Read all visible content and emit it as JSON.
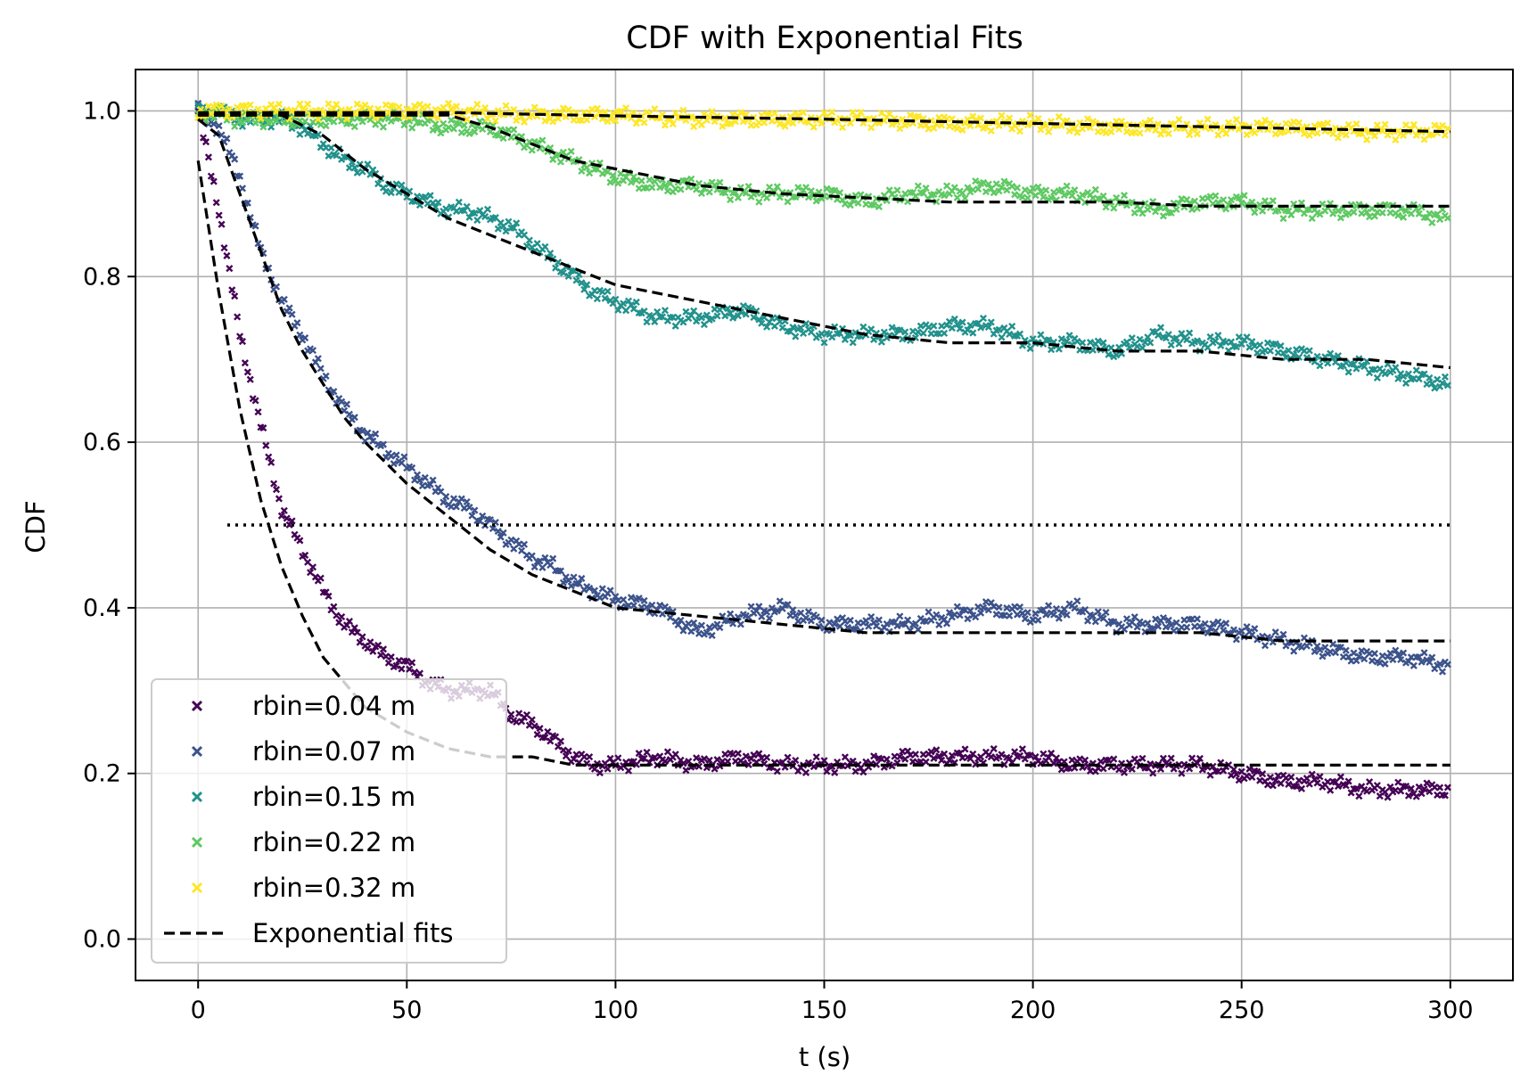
{
  "chart_data": {
    "type": "line",
    "title": "CDF with Exponential Fits",
    "xlabel": "t (s)",
    "ylabel": "CDF",
    "xlim": [
      -15,
      315
    ],
    "ylim": [
      -0.05,
      1.05
    ],
    "xticks": [
      0,
      50,
      100,
      150,
      200,
      250,
      300
    ],
    "yticks": [
      0.0,
      0.2,
      0.4,
      0.6,
      0.8,
      1.0
    ],
    "xtick_labels": [
      "0",
      "50",
      "100",
      "150",
      "200",
      "250",
      "300"
    ],
    "ytick_labels": [
      "0.0",
      "0.2",
      "0.4",
      "0.6",
      "0.8",
      "1.0"
    ],
    "grid": true,
    "legend_position": "lower-left",
    "reference_line": {
      "y": 0.5,
      "x_range": [
        7,
        300
      ],
      "style": "dotted",
      "color": "#000000"
    },
    "series": [
      {
        "name": "rbin=0.04 m",
        "color": "#440154",
        "marker": "x",
        "x": [
          0,
          5,
          10,
          15,
          20,
          25,
          30,
          35,
          40,
          45,
          50,
          55,
          60,
          65,
          70,
          75,
          80,
          85,
          90,
          95,
          100,
          110,
          120,
          130,
          140,
          150,
          160,
          170,
          180,
          190,
          200,
          210,
          220,
          230,
          240,
          250,
          260,
          270,
          280,
          290,
          300
        ],
        "y": [
          1.0,
          0.88,
          0.73,
          0.62,
          0.52,
          0.47,
          0.42,
          0.38,
          0.36,
          0.34,
          0.33,
          0.31,
          0.3,
          0.3,
          0.3,
          0.27,
          0.26,
          0.24,
          0.22,
          0.21,
          0.21,
          0.22,
          0.21,
          0.22,
          0.21,
          0.21,
          0.21,
          0.22,
          0.22,
          0.22,
          0.22,
          0.21,
          0.21,
          0.21,
          0.21,
          0.2,
          0.19,
          0.19,
          0.18,
          0.18,
          0.18
        ]
      },
      {
        "name": "rbin=0.07 m",
        "color": "#3b528b",
        "marker": "x",
        "x": [
          0,
          5,
          10,
          15,
          20,
          25,
          30,
          35,
          40,
          45,
          50,
          55,
          60,
          65,
          70,
          75,
          80,
          85,
          90,
          95,
          100,
          110,
          120,
          130,
          140,
          150,
          160,
          170,
          180,
          190,
          200,
          210,
          220,
          230,
          240,
          250,
          260,
          270,
          280,
          290,
          300
        ],
        "y": [
          1.0,
          0.98,
          0.92,
          0.83,
          0.77,
          0.73,
          0.68,
          0.64,
          0.61,
          0.59,
          0.57,
          0.55,
          0.53,
          0.52,
          0.5,
          0.48,
          0.46,
          0.45,
          0.43,
          0.42,
          0.41,
          0.4,
          0.37,
          0.39,
          0.4,
          0.38,
          0.38,
          0.38,
          0.39,
          0.4,
          0.39,
          0.4,
          0.38,
          0.38,
          0.38,
          0.37,
          0.36,
          0.35,
          0.34,
          0.34,
          0.33
        ]
      },
      {
        "name": "rbin=0.15 m",
        "color": "#21918c",
        "marker": "x",
        "x": [
          0,
          5,
          10,
          15,
          20,
          25,
          30,
          35,
          40,
          45,
          50,
          55,
          60,
          65,
          70,
          75,
          80,
          85,
          90,
          95,
          100,
          110,
          120,
          130,
          140,
          150,
          160,
          170,
          180,
          190,
          200,
          210,
          220,
          230,
          240,
          250,
          260,
          270,
          280,
          290,
          300
        ],
        "y": [
          1.0,
          1.0,
          0.99,
          0.99,
          0.99,
          0.98,
          0.96,
          0.94,
          0.93,
          0.91,
          0.9,
          0.89,
          0.88,
          0.88,
          0.87,
          0.86,
          0.84,
          0.82,
          0.8,
          0.78,
          0.77,
          0.75,
          0.75,
          0.76,
          0.74,
          0.73,
          0.73,
          0.73,
          0.74,
          0.74,
          0.72,
          0.72,
          0.71,
          0.73,
          0.72,
          0.72,
          0.71,
          0.7,
          0.69,
          0.68,
          0.67
        ]
      },
      {
        "name": "rbin=0.22 m",
        "color": "#5ec962",
        "marker": "x",
        "x": [
          0,
          10,
          20,
          30,
          40,
          50,
          60,
          70,
          80,
          90,
          100,
          110,
          120,
          130,
          140,
          150,
          160,
          170,
          180,
          190,
          200,
          210,
          220,
          230,
          240,
          250,
          260,
          270,
          280,
          290,
          300
        ],
        "y": [
          1.0,
          0.99,
          0.99,
          0.99,
          0.99,
          0.99,
          0.98,
          0.98,
          0.96,
          0.94,
          0.92,
          0.91,
          0.91,
          0.9,
          0.9,
          0.9,
          0.89,
          0.9,
          0.9,
          0.91,
          0.9,
          0.9,
          0.89,
          0.88,
          0.89,
          0.89,
          0.88,
          0.88,
          0.88,
          0.88,
          0.87
        ]
      },
      {
        "name": "rbin=0.32 m",
        "color": "#fde725",
        "marker": "x",
        "x": [
          0,
          20,
          40,
          60,
          80,
          100,
          120,
          140,
          160,
          180,
          200,
          220,
          240,
          260,
          280,
          300
        ],
        "y": [
          1.0,
          1.0,
          1.0,
          1.0,
          0.995,
          0.995,
          0.99,
          0.99,
          0.99,
          0.985,
          0.985,
          0.98,
          0.98,
          0.98,
          0.975,
          0.975
        ]
      }
    ],
    "fits": {
      "name": "Exponential fits",
      "color": "#000000",
      "style": "dashed",
      "curves": [
        {
          "x": [
            0,
            5,
            10,
            15,
            20,
            25,
            30,
            35,
            40,
            50,
            60,
            70,
            80,
            90,
            100,
            120,
            140,
            160,
            180,
            200,
            220,
            240,
            260,
            280,
            300
          ],
          "y": [
            0.94,
            0.78,
            0.64,
            0.53,
            0.45,
            0.39,
            0.34,
            0.31,
            0.28,
            0.25,
            0.23,
            0.22,
            0.22,
            0.21,
            0.21,
            0.21,
            0.21,
            0.21,
            0.21,
            0.21,
            0.21,
            0.21,
            0.21,
            0.21,
            0.21
          ]
        },
        {
          "x": [
            0,
            5,
            10,
            15,
            20,
            25,
            30,
            35,
            40,
            50,
            60,
            70,
            80,
            90,
            100,
            120,
            140,
            160,
            180,
            200,
            220,
            240,
            260,
            280,
            300
          ],
          "y": [
            0.99,
            0.97,
            0.9,
            0.83,
            0.76,
            0.71,
            0.67,
            0.63,
            0.6,
            0.55,
            0.51,
            0.47,
            0.44,
            0.42,
            0.4,
            0.39,
            0.38,
            0.37,
            0.37,
            0.37,
            0.37,
            0.37,
            0.36,
            0.36,
            0.36
          ]
        },
        {
          "x": [
            0,
            20,
            30,
            40,
            50,
            60,
            70,
            80,
            90,
            100,
            120,
            140,
            160,
            180,
            200,
            220,
            240,
            260,
            280,
            300
          ],
          "y": [
            0.995,
            0.995,
            0.97,
            0.93,
            0.9,
            0.87,
            0.85,
            0.83,
            0.81,
            0.79,
            0.77,
            0.75,
            0.73,
            0.72,
            0.72,
            0.71,
            0.71,
            0.7,
            0.7,
            0.69
          ]
        },
        {
          "x": [
            0,
            60,
            70,
            80,
            90,
            100,
            110,
            120,
            140,
            160,
            180,
            200,
            220,
            240,
            260,
            280,
            300
          ],
          "y": [
            0.995,
            0.995,
            0.98,
            0.96,
            0.94,
            0.93,
            0.92,
            0.91,
            0.9,
            0.895,
            0.89,
            0.89,
            0.89,
            0.885,
            0.885,
            0.885,
            0.885
          ]
        },
        {
          "x": [
            0,
            60,
            100,
            150,
            200,
            250,
            300
          ],
          "y": [
            0.998,
            0.998,
            0.994,
            0.99,
            0.985,
            0.98,
            0.975
          ]
        }
      ]
    }
  }
}
